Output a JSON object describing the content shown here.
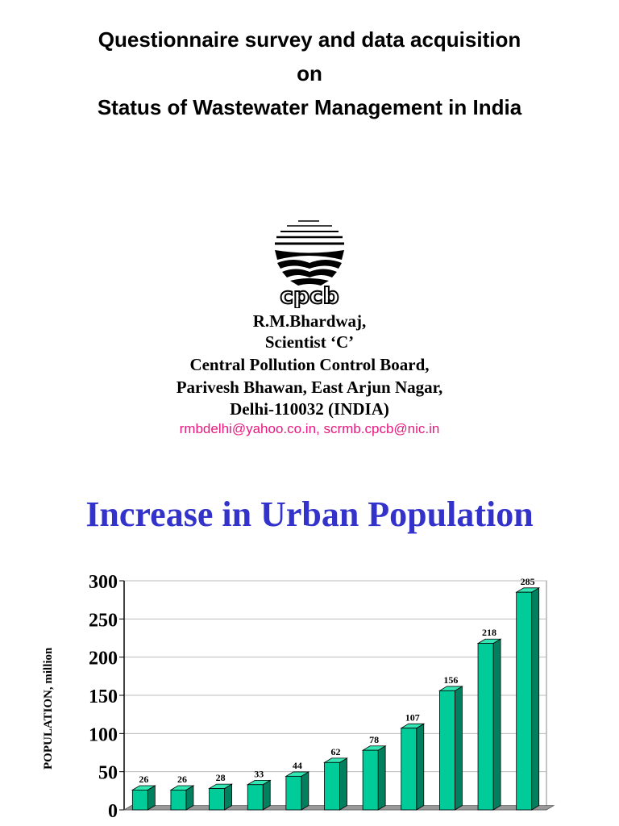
{
  "header": {
    "title_lines": [
      "Questionnaire survey and data acquisition",
      "on",
      "Status of Wastewater Management in India"
    ]
  },
  "logo": {
    "text": "cpcb"
  },
  "author": {
    "lines": [
      "R.M.Bhardwaj,",
      "Scientist ‘C’",
      "Central Pollution Control Board,",
      "Parivesh Bhawan, East Arjun Nagar,",
      "Delhi-110032 (INDIA)"
    ],
    "email": "rmbdelhi@yahoo.co.in, scrmb.cpcb@nic.in"
  },
  "section": {
    "heading": "Increase in Urban Population"
  },
  "colors": {
    "bar": "#00cc99",
    "heading": "#3333cc",
    "email": "#e8197d"
  },
  "chart_data": {
    "type": "bar",
    "title": "",
    "xlabel": "",
    "ylabel": "POPULATION, million",
    "categories": [
      "",
      "",
      "",
      "",
      "",
      "",
      "",
      "",
      "",
      "",
      ""
    ],
    "values": [
      26,
      26,
      28,
      33,
      44,
      62,
      78,
      107,
      156,
      218,
      285
    ],
    "yticks": [
      0,
      50,
      100,
      150,
      200,
      250,
      300
    ],
    "ylim": [
      0,
      300
    ],
    "grid": true,
    "legend": "none"
  }
}
